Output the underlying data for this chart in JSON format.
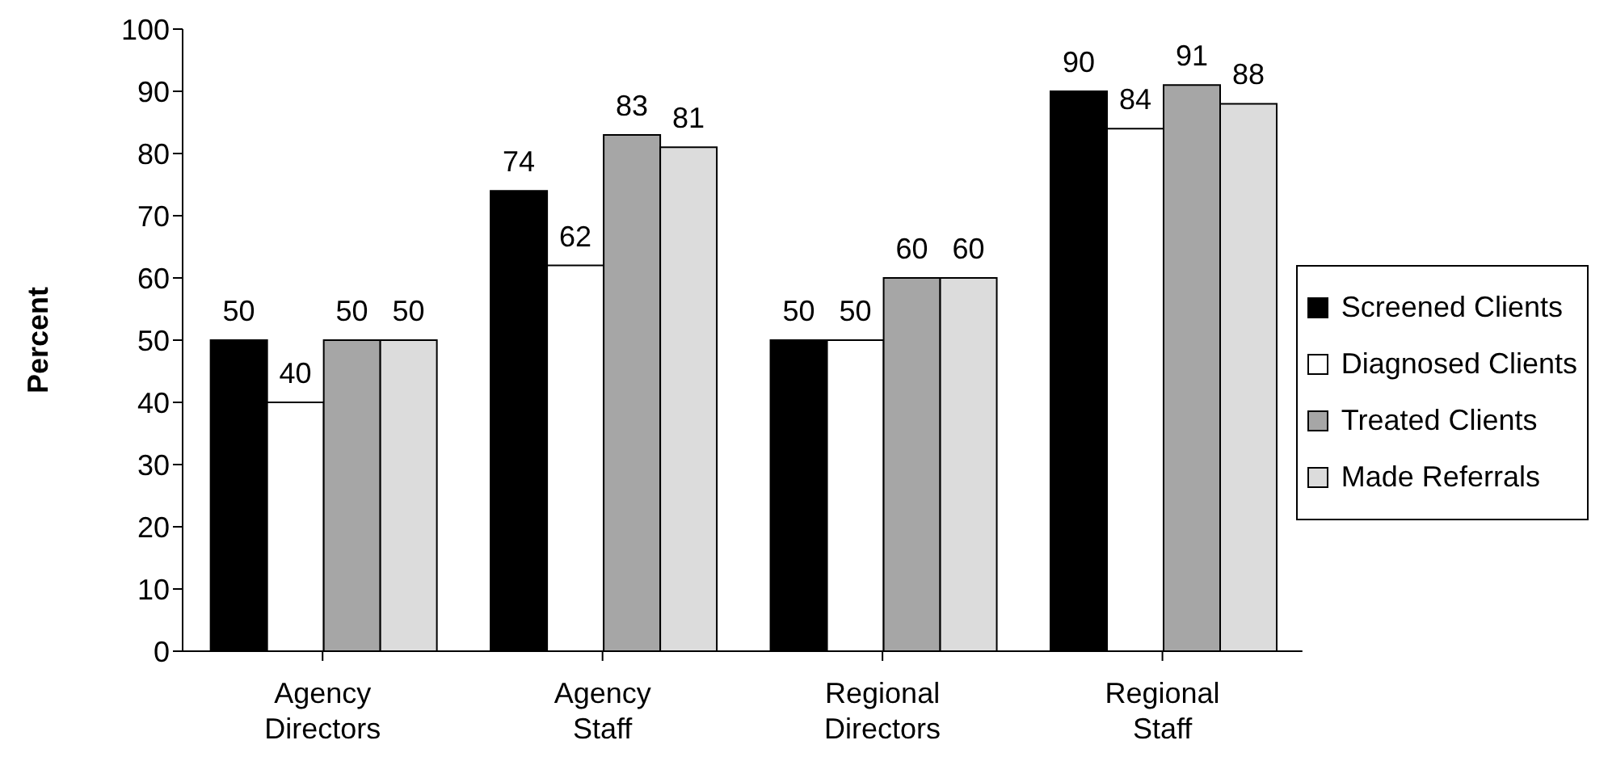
{
  "chart_data": {
    "type": "bar",
    "ylabel": "Percent",
    "categories": [
      "Agency Directors",
      "Agency Staff",
      "Regional Directors",
      "Regional Staff"
    ],
    "series": [
      {
        "name": "Screened Clients",
        "color": "#000000",
        "values": [
          50,
          74,
          50,
          90
        ]
      },
      {
        "name": "Diagnosed Clients",
        "color": "#ffffff",
        "values": [
          40,
          62,
          50,
          84
        ]
      },
      {
        "name": "Treated Clients",
        "color": "#a6a6a6",
        "values": [
          50,
          83,
          60,
          91
        ]
      },
      {
        "name": "Made Referrals",
        "color": "#dcdcdc",
        "values": [
          50,
          81,
          60,
          88
        ]
      }
    ],
    "ylim": [
      0,
      100
    ],
    "yticks": [
      0,
      10,
      20,
      30,
      40,
      50,
      60,
      70,
      80,
      90,
      100
    ],
    "grid": false,
    "legend": "right",
    "data_labels": true
  }
}
